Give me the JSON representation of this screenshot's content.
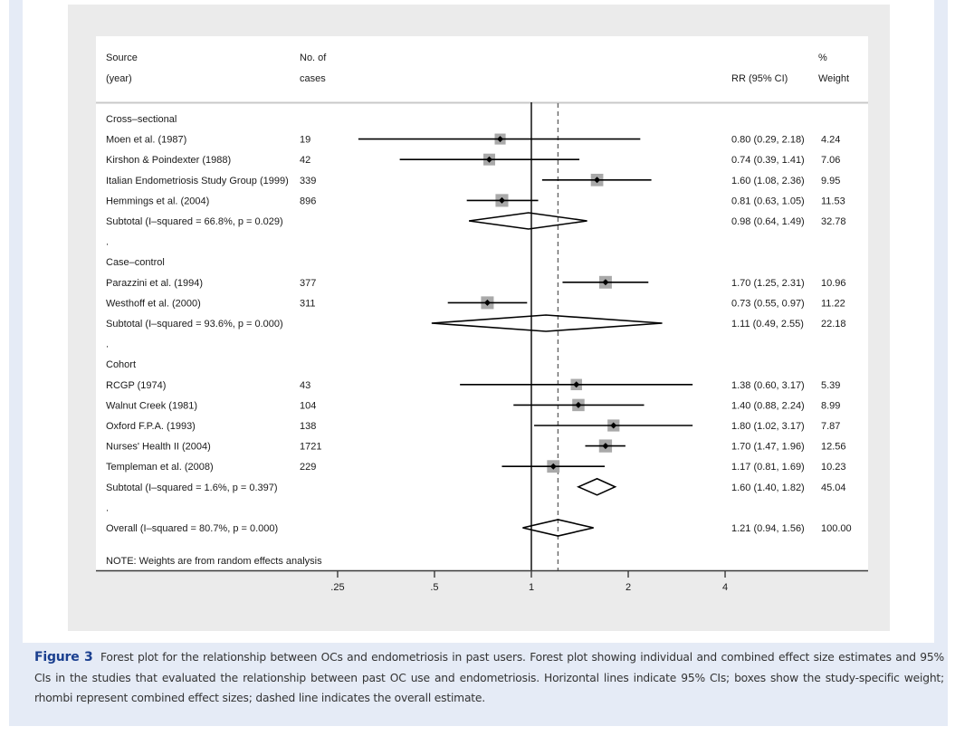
{
  "colors": {
    "frame_blue": "#e5ebf6",
    "panel_gray": "#ebebeb",
    "box_gray": "#a9a9a9",
    "ink": "#000000",
    "caption_label": "#1a3f8f"
  },
  "header": {
    "source_line1": "Source",
    "source_line2": "(year)",
    "cases_line1": "No. of",
    "cases_line2": "cases",
    "rr_label": "RR (95% CI)",
    "weight_line1": "%",
    "weight_line2": "Weight"
  },
  "note": "NOTE: Weights are from random effects analysis",
  "chart_data": {
    "type": "forest",
    "scale": "log",
    "xlabel": "",
    "x_ticks": [
      0.25,
      0.5,
      1,
      2,
      4
    ],
    "x_tick_labels": [
      ".25",
      ".5",
      "1",
      "2",
      "4"
    ],
    "reference_line": 1,
    "overall_line": 1.21,
    "rows": [
      {
        "kind": "group",
        "label": "Cross–sectional"
      },
      {
        "kind": "study",
        "label": "Moen et al. (1987)",
        "cases": "19",
        "rr": 0.8,
        "lo": 0.29,
        "hi": 2.18,
        "rr_text": "0.80 (0.29, 2.18)",
        "weight": 4.24,
        "weight_text": "4.24"
      },
      {
        "kind": "study",
        "label": "Kirshon & Poindexter (1988)",
        "cases": "42",
        "rr": 0.74,
        "lo": 0.39,
        "hi": 1.41,
        "rr_text": "0.74 (0.39, 1.41)",
        "weight": 7.06,
        "weight_text": "7.06"
      },
      {
        "kind": "study",
        "label": "Italian Endometriosis Study Group (1999)",
        "cases": "339",
        "rr": 1.6,
        "lo": 1.08,
        "hi": 2.36,
        "rr_text": "1.60 (1.08, 2.36)",
        "weight": 9.95,
        "weight_text": "9.95"
      },
      {
        "kind": "study",
        "label": "Hemmings et al. (2004)",
        "cases": "896",
        "rr": 0.81,
        "lo": 0.63,
        "hi": 1.05,
        "rr_text": "0.81 (0.63, 1.05)",
        "weight": 11.53,
        "weight_text": "11.53"
      },
      {
        "kind": "subtotal",
        "label": "Subtotal  (I–squared = 66.8%, p = 0.029)",
        "rr": 0.98,
        "lo": 0.64,
        "hi": 1.49,
        "rr_text": "0.98 (0.64, 1.49)",
        "weight": 32.78,
        "weight_text": "32.78"
      },
      {
        "kind": "spacer",
        "label": "."
      },
      {
        "kind": "group",
        "label": "Case–control"
      },
      {
        "kind": "study",
        "label": "Parazzini et al. (1994)",
        "cases": "377",
        "rr": 1.7,
        "lo": 1.25,
        "hi": 2.31,
        "rr_text": "1.70 (1.25, 2.31)",
        "weight": 10.96,
        "weight_text": "10.96"
      },
      {
        "kind": "study",
        "label": "Westhoff et al. (2000)",
        "cases": "311",
        "rr": 0.73,
        "lo": 0.55,
        "hi": 0.97,
        "rr_text": "0.73 (0.55, 0.97)",
        "weight": 11.22,
        "weight_text": "11.22"
      },
      {
        "kind": "subtotal",
        "label": "Subtotal  (I–squared = 93.6%, p = 0.000)",
        "rr": 1.11,
        "lo": 0.49,
        "hi": 2.55,
        "rr_text": "1.11 (0.49, 2.55)",
        "weight": 22.18,
        "weight_text": "22.18"
      },
      {
        "kind": "spacer",
        "label": "."
      },
      {
        "kind": "group",
        "label": "Cohort"
      },
      {
        "kind": "study",
        "label": "RCGP (1974)",
        "cases": "43",
        "rr": 1.38,
        "lo": 0.6,
        "hi": 3.17,
        "rr_text": "1.38 (0.60, 3.17)",
        "weight": 5.39,
        "weight_text": "5.39"
      },
      {
        "kind": "study",
        "label": "Walnut Creek (1981)",
        "cases": "104",
        "rr": 1.4,
        "lo": 0.88,
        "hi": 2.24,
        "rr_text": "1.40 (0.88, 2.24)",
        "weight": 8.99,
        "weight_text": "8.99"
      },
      {
        "kind": "study",
        "label": "Oxford F.P.A. (1993)",
        "cases": "138",
        "rr": 1.8,
        "lo": 1.02,
        "hi": 3.17,
        "rr_text": "1.80 (1.02, 3.17)",
        "weight": 7.87,
        "weight_text": "7.87"
      },
      {
        "kind": "study",
        "label": "Nurses' Health II (2004)",
        "cases": "1721",
        "rr": 1.7,
        "lo": 1.47,
        "hi": 1.96,
        "rr_text": "1.70 (1.47, 1.96)",
        "weight": 12.56,
        "weight_text": "12.56"
      },
      {
        "kind": "study",
        "label": "Templeman et al. (2008)",
        "cases": "229",
        "rr": 1.17,
        "lo": 0.81,
        "hi": 1.69,
        "rr_text": "1.17 (0.81, 1.69)",
        "weight": 10.23,
        "weight_text": "10.23"
      },
      {
        "kind": "subtotal",
        "label": "Subtotal  (I–squared = 1.6%, p = 0.397)",
        "rr": 1.6,
        "lo": 1.4,
        "hi": 1.82,
        "rr_text": "1.60 (1.40, 1.82)",
        "weight": 45.04,
        "weight_text": "45.04"
      },
      {
        "kind": "spacer",
        "label": "."
      },
      {
        "kind": "overall",
        "label": "Overall  (I–squared = 80.7%, p = 0.000)",
        "rr": 1.21,
        "lo": 0.94,
        "hi": 1.56,
        "rr_text": "1.21 (0.94, 1.56)",
        "weight": 100.0,
        "weight_text": "100.00"
      }
    ]
  },
  "caption": {
    "label": "Figure 3",
    "text": "Forest plot for the relationship between OCs and endometriosis in past users. Forest plot showing individual and combined effect size estimates and 95% CIs in the studies that evaluated the relationship between past OC use and endometriosis. Horizontal lines indicate 95% CIs; boxes show the study-specific weight; rhombi represent combined effect sizes; dashed line indicates the overall estimate."
  }
}
